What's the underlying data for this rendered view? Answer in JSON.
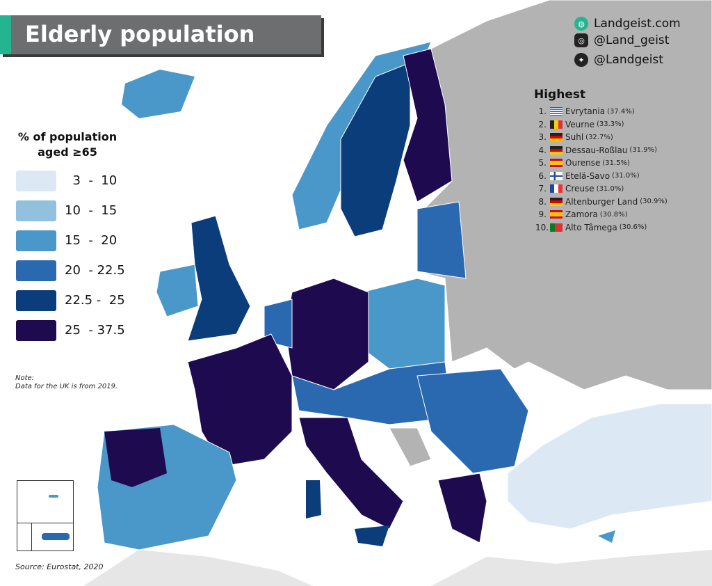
{
  "title": "Elderly population",
  "social": [
    {
      "icon": "globe-icon",
      "label": "Landgeist.com"
    },
    {
      "icon": "instagram-icon",
      "label": "@Land_geist"
    },
    {
      "icon": "twitter-icon",
      "label": "@Landgeist"
    }
  ],
  "legend": {
    "title_line1": "% of population",
    "title_line2": "aged ≥65",
    "items": [
      {
        "label": "  3  -  10",
        "color": "#dce9f5"
      },
      {
        "label": "10  -  15",
        "color": "#91c1df"
      },
      {
        "label": "15  -  20",
        "color": "#4a97c9"
      },
      {
        "label": "20  - 22.5",
        "color": "#2a69b0"
      },
      {
        "label": "22.5 -  25",
        "color": "#0b3d7a"
      },
      {
        "label": "25  - 37.5",
        "color": "#1e0a4e"
      }
    ]
  },
  "note": {
    "heading": "Note:",
    "text": "Data for the UK is from 2019."
  },
  "source": "Source: Eurostat, 2020",
  "highest": {
    "title": "Highest",
    "items": [
      {
        "rank": "1.",
        "name": "Evrytania",
        "value": "(37.4%)",
        "flag": "greece"
      },
      {
        "rank": "2.",
        "name": "Veurne",
        "value": "(33.3%)",
        "flag": "belgium"
      },
      {
        "rank": "3.",
        "name": "Suhl",
        "value": "(32.7%)",
        "flag": "germany"
      },
      {
        "rank": "4.",
        "name": "Dessau-Roßlau",
        "value": "(31.9%)",
        "flag": "germany"
      },
      {
        "rank": "5.",
        "name": "Ourense",
        "value": "(31.5%)",
        "flag": "spain"
      },
      {
        "rank": "6.",
        "name": "Etelä-Savo",
        "value": "(31.0%)",
        "flag": "finland"
      },
      {
        "rank": "7.",
        "name": "Creuse",
        "value": "(31.0%)",
        "flag": "france"
      },
      {
        "rank": "8.",
        "name": "Altenburger Land",
        "value": "(30.9%)",
        "flag": "germany"
      },
      {
        "rank": "9.",
        "name": "Zamora",
        "value": "(30.8%)",
        "flag": "spain"
      },
      {
        "rank": "10.",
        "name": "Alto Tâmega",
        "value": "(30.6%)",
        "flag": "portugal"
      }
    ]
  },
  "colors": {
    "no_data": "#b3b3b3",
    "outside": "#e6e6e6",
    "accent": "#22b58f"
  }
}
